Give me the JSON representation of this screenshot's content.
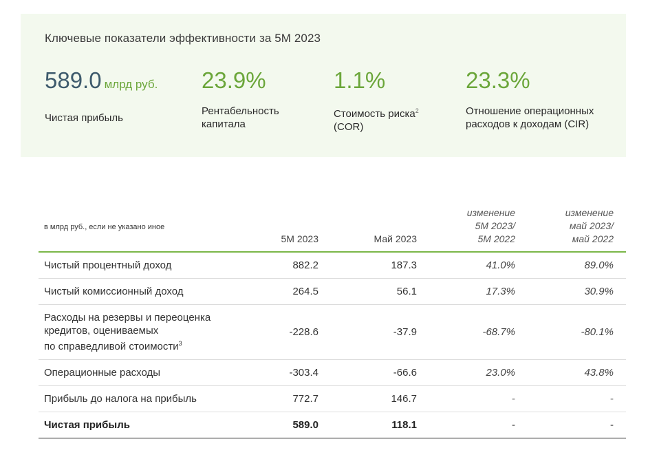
{
  "kpi_panel": {
    "title": "Ключевые показатели эффективности за 5М 2023",
    "items": [
      {
        "value": "589.0",
        "unit": "млрд руб.",
        "label": "Чистая прибыль"
      },
      {
        "value": "23.9%",
        "label": "Рентабельность\nкапитала"
      },
      {
        "value": "1.1%",
        "label": "Стоимость риска",
        "label_sup": "2",
        "label_line2": "(COR)"
      },
      {
        "value": "23.3%",
        "label": "Отношение операционных\nрасходов к доходам (CIR)"
      }
    ]
  },
  "table": {
    "headers": {
      "label": "в млрд руб., если не указано иное",
      "col1": "5М 2023",
      "col2": "Май 2023",
      "col3": "изменение\n5М 2023/\n5М 2022",
      "col4": "изменение\nмай 2023/\nмай  2022"
    },
    "rows": [
      {
        "name": "Чистый процентный доход",
        "c1": "882.2",
        "c2": "187.3",
        "c3": "41.0%",
        "c4": "89.0%"
      },
      {
        "name": "Чистый комиссионный доход",
        "c1": "264.5",
        "c2": "56.1",
        "c3": "17.3%",
        "c4": "30.9%"
      },
      {
        "name": "Расходы на резервы и переоценка\nкредитов, оцениваемых\nпо справедливой стоимости",
        "name_sup": "3",
        "c1": "-228.6",
        "c2": "-37.9",
        "c3": "-68.7%",
        "c4": "-80.1%"
      },
      {
        "name": "Операционные расходы",
        "c1": "-303.4",
        "c2": "-66.6",
        "c3": "23.0%",
        "c4": "43.8%"
      },
      {
        "name": "Прибыль до налога на прибыль",
        "c1": "772.7",
        "c2": "146.7",
        "c3": "-",
        "c4": "-"
      },
      {
        "name": "Чистая прибыль",
        "c1": "589.0",
        "c2": "118.1",
        "c3": "-",
        "c4": "-"
      }
    ]
  },
  "colors": {
    "panel_bg": "#f3f9ee",
    "accent_green": "#6ba63a",
    "value_slate": "#3d5a6c",
    "header_rule": "#7ab648"
  }
}
